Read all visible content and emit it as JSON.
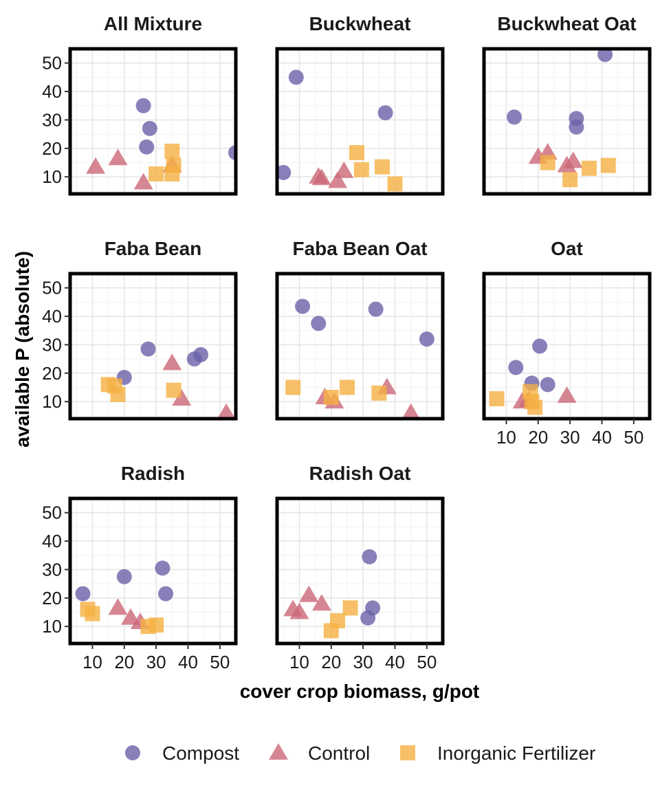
{
  "chart_data": {
    "type": "scatter",
    "xlabel": "cover crop biomass, g/pot",
    "ylabel": "available P (absolute)",
    "xlim": [
      3,
      55
    ],
    "ylim": [
      4,
      55
    ],
    "x_ticks": [
      10,
      20,
      30,
      40,
      50
    ],
    "y_ticks": [
      10,
      20,
      30,
      40,
      50
    ],
    "grid": true,
    "legend_position": "bottom",
    "series_styles": [
      {
        "name": "Compost",
        "shape": "circle",
        "color": "#6a62a8"
      },
      {
        "name": "Control",
        "shape": "triangle",
        "color": "#cc6677"
      },
      {
        "name": "Inorganic Fertilizer",
        "shape": "square",
        "color": "#f5b042"
      }
    ],
    "panels": [
      {
        "title": "All Mixture",
        "series": [
          {
            "name": "Compost",
            "x": [
              26,
              28,
              27,
              55
            ],
            "y": [
              35,
              27,
              20.5,
              18.5
            ]
          },
          {
            "name": "Control",
            "x": [
              11,
              18,
              26,
              35
            ],
            "y": [
              13.5,
              16.5,
              8,
              14
            ]
          },
          {
            "name": "Inorganic Fertilizer",
            "x": [
              30,
              35,
              35.5,
              35
            ],
            "y": [
              11,
              19,
              14,
              11
            ]
          }
        ]
      },
      {
        "title": "Buckwheat",
        "series": [
          {
            "name": "Compost",
            "x": [
              9,
              37,
              5
            ],
            "y": [
              45,
              32.5,
              11.5
            ]
          },
          {
            "name": "Control",
            "x": [
              16,
              17,
              22,
              24
            ],
            "y": [
              10,
              9.5,
              8.5,
              12
            ]
          },
          {
            "name": "Inorganic Fertilizer",
            "x": [
              28,
              29.5,
              36,
              40
            ],
            "y": [
              18.5,
              12.5,
              13.5,
              7.5
            ]
          }
        ]
      },
      {
        "title": "Buckwheat Oat",
        "series": [
          {
            "name": "Compost",
            "x": [
              12.5,
              32,
              32,
              41
            ],
            "y": [
              31,
              30.5,
              27.5,
              53
            ]
          },
          {
            "name": "Control",
            "x": [
              20,
              23,
              29,
              31
            ],
            "y": [
              17,
              18.5,
              14,
              15.5
            ]
          },
          {
            "name": "Inorganic Fertilizer",
            "x": [
              23,
              30,
              36,
              42
            ],
            "y": [
              15,
              9,
              13,
              14
            ]
          }
        ]
      },
      {
        "title": "Faba Bean",
        "series": [
          {
            "name": "Compost",
            "x": [
              20,
              27.5,
              42,
              44
            ],
            "y": [
              18.5,
              28.5,
              25,
              26.5
            ]
          },
          {
            "name": "Control",
            "x": [
              35,
              38,
              52
            ],
            "y": [
              23.5,
              11,
              6
            ]
          },
          {
            "name": "Inorganic Fertilizer",
            "x": [
              15,
              17,
              18,
              35.5
            ],
            "y": [
              16,
              15.5,
              12.5,
              14
            ]
          }
        ]
      },
      {
        "title": "Faba Bean Oat",
        "series": [
          {
            "name": "Compost",
            "x": [
              11,
              16,
              34,
              50
            ],
            "y": [
              43.5,
              37.5,
              42.5,
              32
            ]
          },
          {
            "name": "Control",
            "x": [
              18,
              21,
              37.5,
              45
            ],
            "y": [
              11.5,
              10,
              15,
              6
            ]
          },
          {
            "name": "Inorganic Fertilizer",
            "x": [
              8,
              20,
              25,
              35
            ],
            "y": [
              15,
              11.5,
              15,
              13
            ]
          }
        ]
      },
      {
        "title": "Oat",
        "series": [
          {
            "name": "Compost",
            "x": [
              13,
              18,
              20.5,
              23
            ],
            "y": [
              22,
              16.5,
              29.5,
              16
            ]
          },
          {
            "name": "Control",
            "x": [
              15,
              17,
              29
            ],
            "y": [
              10,
              10.5,
              12
            ]
          },
          {
            "name": "Inorganic Fertilizer",
            "x": [
              7,
              17.5,
              18,
              19
            ],
            "y": [
              11,
              13.5,
              10,
              8
            ]
          }
        ]
      },
      {
        "title": "Radish",
        "series": [
          {
            "name": "Compost",
            "x": [
              7,
              20,
              32,
              33
            ],
            "y": [
              21.5,
              27.5,
              30.5,
              21.5
            ]
          },
          {
            "name": "Control",
            "x": [
              18,
              22,
              25
            ],
            "y": [
              16.5,
              13,
              11.5
            ]
          },
          {
            "name": "Inorganic Fertilizer",
            "x": [
              8.5,
              10,
              27.5,
              30
            ],
            "y": [
              16,
              14.5,
              10,
              10.5
            ]
          }
        ]
      },
      {
        "title": "Radish Oat",
        "series": [
          {
            "name": "Compost",
            "x": [
              32,
              33,
              31.5
            ],
            "y": [
              34.5,
              16.5,
              13
            ]
          },
          {
            "name": "Control",
            "x": [
              8,
              13,
              17,
              10
            ],
            "y": [
              16,
              21,
              18,
              15
            ]
          },
          {
            "name": "Inorganic Fertilizer",
            "x": [
              20,
              22,
              26
            ],
            "y": [
              8.5,
              12,
              16.5
            ]
          }
        ]
      }
    ]
  }
}
